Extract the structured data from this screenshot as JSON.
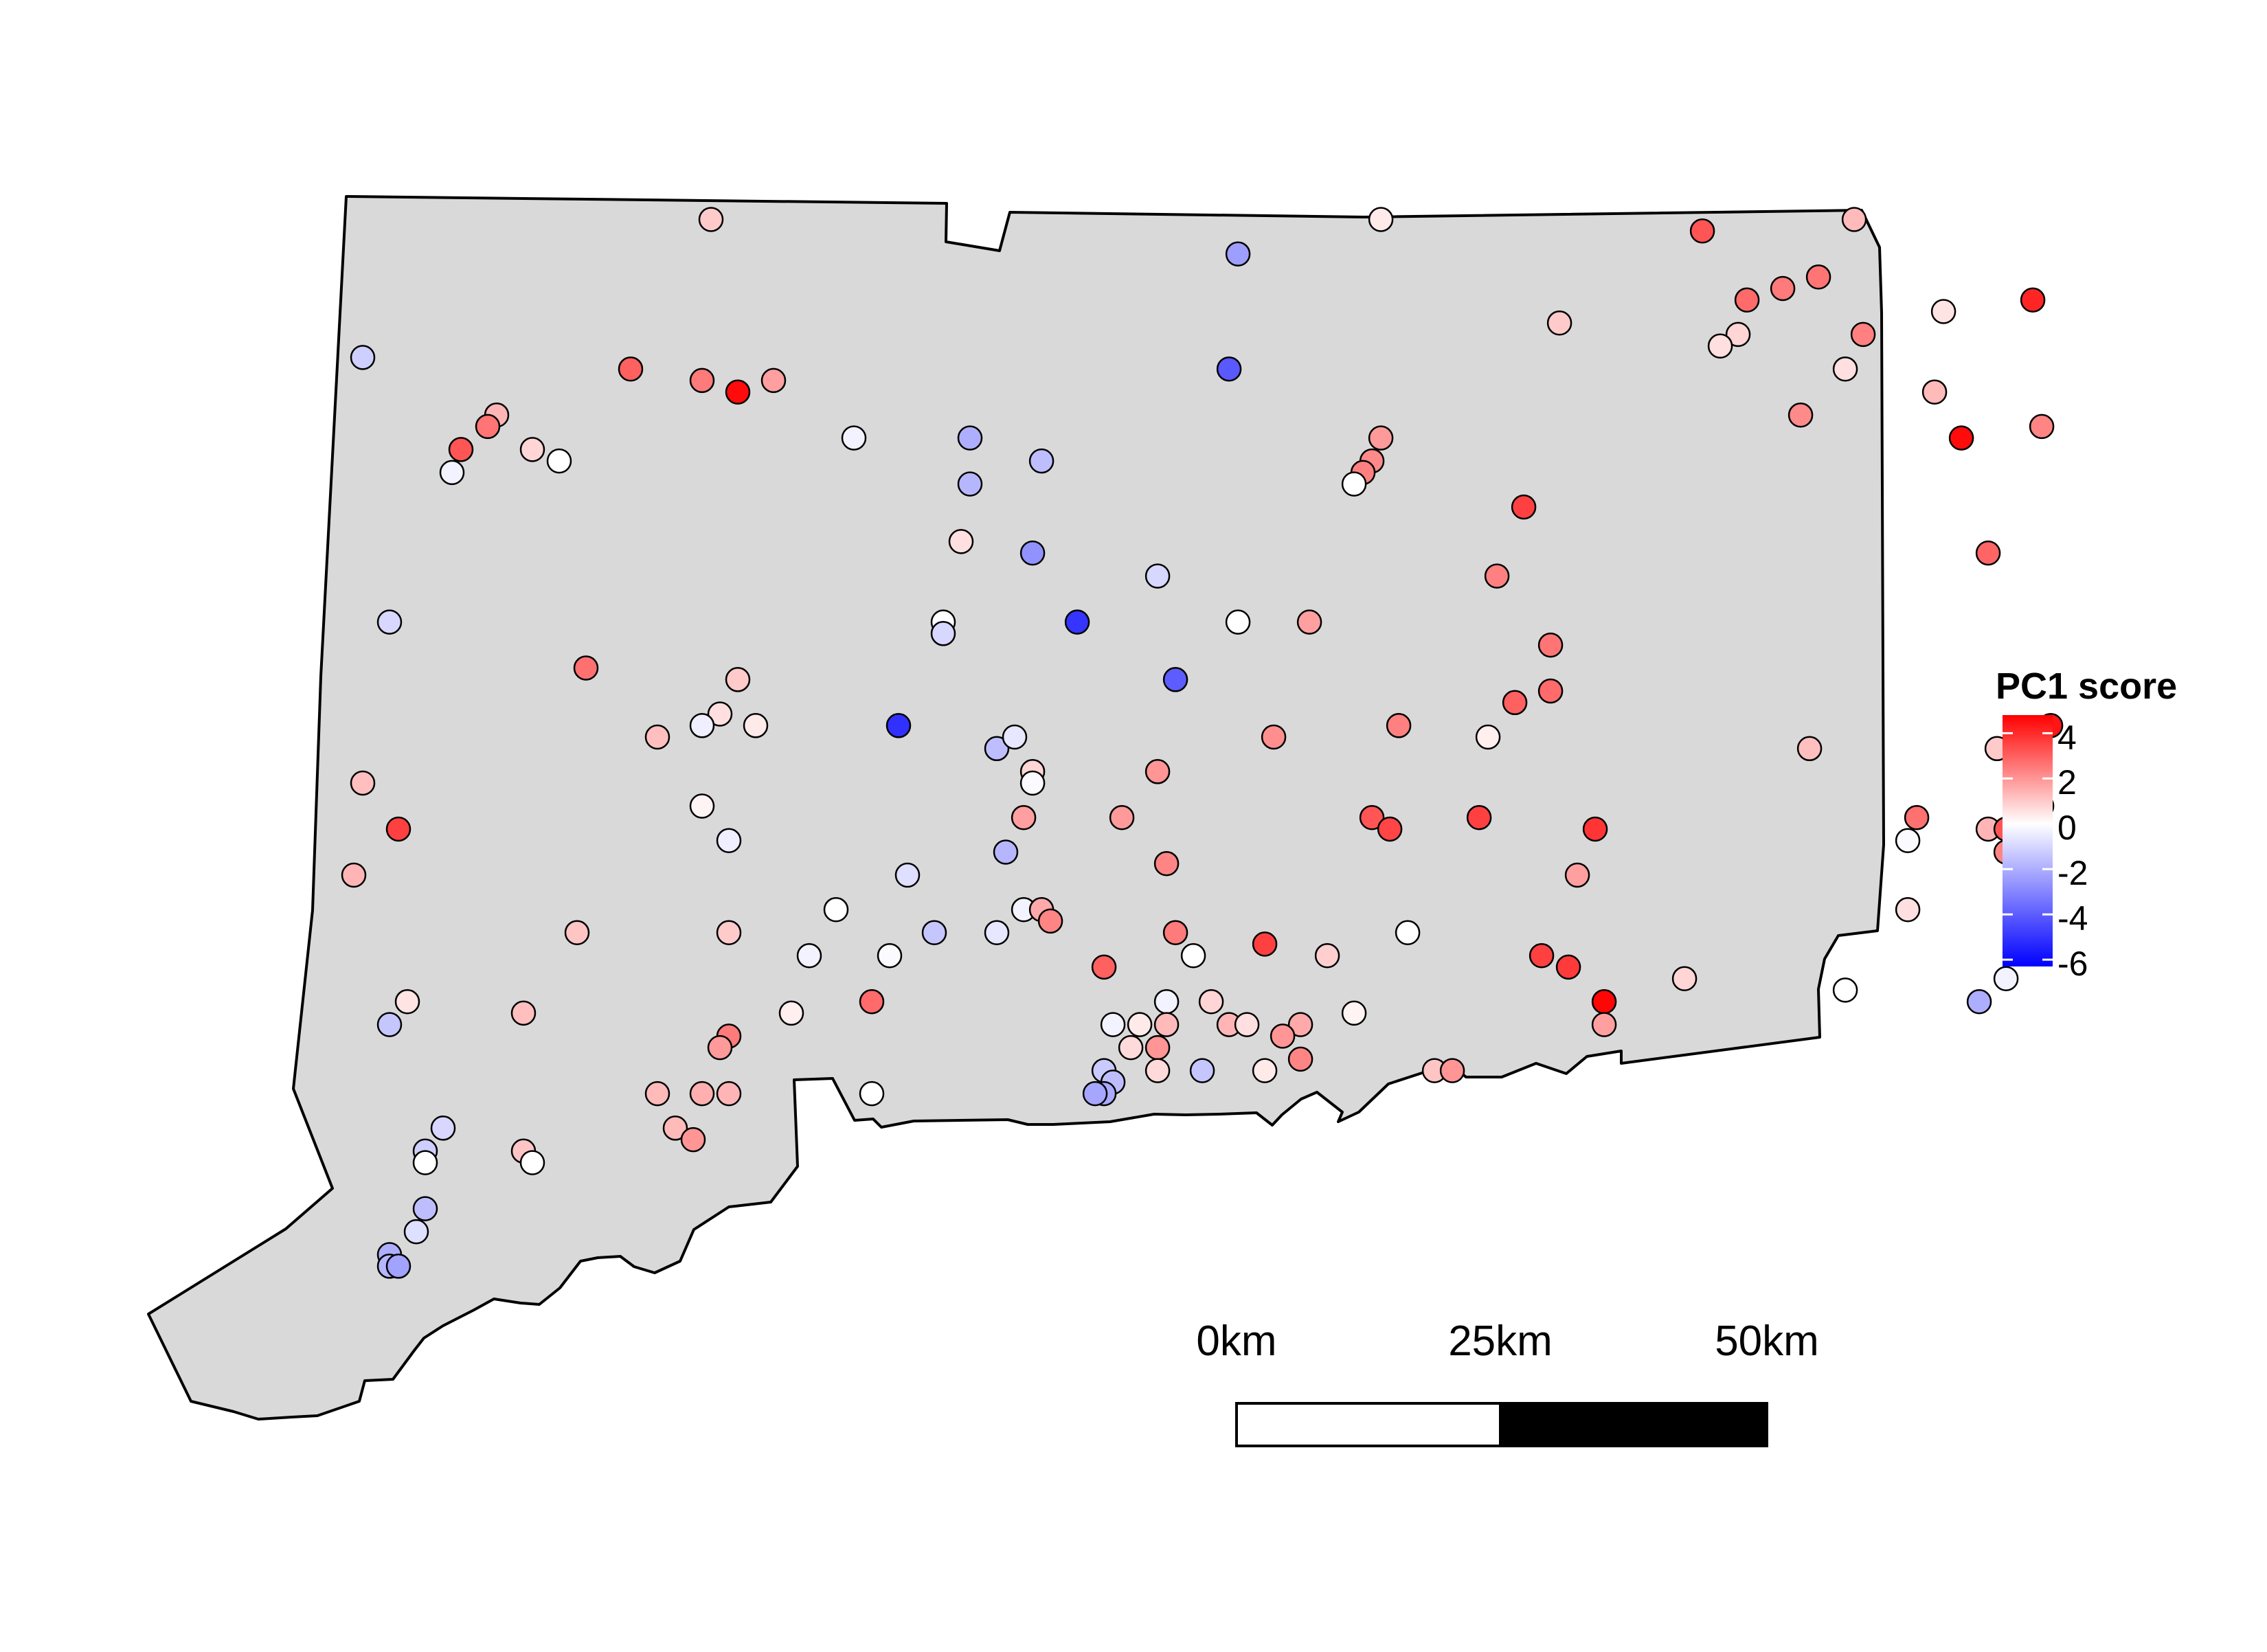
{
  "legend": {
    "title": "PC1 score",
    "ticks": [
      "4",
      "2",
      "0",
      "-2",
      "-4",
      "-6"
    ],
    "tick_values": [
      4,
      2,
      0,
      -2,
      -4,
      -6
    ],
    "range": [
      -6.3,
      4.8
    ],
    "colors": {
      "low": "#0000ff",
      "mid": "#ffffff",
      "high": "#ff0000"
    }
  },
  "scale_bar": {
    "labels": [
      "0km",
      "25km",
      "50km"
    ],
    "segment_colors": [
      "#ffffff",
      "#000000"
    ]
  },
  "colors": {
    "land_fill": "#d9d9d9",
    "outline": "#000000",
    "background": "#ffffff"
  },
  "sites": [
    {
      "lon": -73.1,
      "lat": 42.03,
      "pc1": 1.0
    },
    {
      "lon": -72.51,
      "lat": 42.0,
      "pc1": -2.4
    },
    {
      "lon": -72.35,
      "lat": 42.03,
      "pc1": 0.4
    },
    {
      "lon": -71.99,
      "lat": 42.02,
      "pc1": 3.2
    },
    {
      "lon": -71.82,
      "lat": 42.03,
      "pc1": 1.3
    },
    {
      "lon": -71.86,
      "lat": 41.98,
      "pc1": 2.6
    },
    {
      "lon": -71.9,
      "lat": 41.97,
      "pc1": 2.5
    },
    {
      "lon": -71.94,
      "lat": 41.96,
      "pc1": 2.8
    },
    {
      "lon": -71.72,
      "lat": 41.95,
      "pc1": 0.5
    },
    {
      "lon": -71.81,
      "lat": 41.93,
      "pc1": 2.4
    },
    {
      "lon": -71.62,
      "lat": 41.96,
      "pc1": 4.1
    },
    {
      "lon": -72.15,
      "lat": 41.94,
      "pc1": 1.0
    },
    {
      "lon": -71.95,
      "lat": 41.93,
      "pc1": 0.8
    },
    {
      "lon": -71.97,
      "lat": 41.92,
      "pc1": 0.6
    },
    {
      "lon": -71.83,
      "lat": 41.9,
      "pc1": 0.6
    },
    {
      "lon": -71.73,
      "lat": 41.88,
      "pc1": 1.3
    },
    {
      "lon": -73.49,
      "lat": 41.91,
      "pc1": -1.2
    },
    {
      "lon": -73.19,
      "lat": 41.9,
      "pc1": 3.0
    },
    {
      "lon": -73.11,
      "lat": 41.89,
      "pc1": 2.5
    },
    {
      "lon": -73.07,
      "lat": 41.88,
      "pc1": 4.6
    },
    {
      "lon": -73.03,
      "lat": 41.89,
      "pc1": 1.8
    },
    {
      "lon": -72.52,
      "lat": 41.9,
      "pc1": -4.1
    },
    {
      "lon": -71.88,
      "lat": 41.86,
      "pc1": 2.2
    },
    {
      "lon": -71.7,
      "lat": 41.84,
      "pc1": 4.6
    },
    {
      "lon": -71.61,
      "lat": 41.85,
      "pc1": 2.3
    },
    {
      "lon": -73.34,
      "lat": 41.86,
      "pc1": 1.4
    },
    {
      "lon": -73.35,
      "lat": 41.85,
      "pc1": 2.6
    },
    {
      "lon": -73.38,
      "lat": 41.83,
      "pc1": 3.2
    },
    {
      "lon": -73.3,
      "lat": 41.83,
      "pc1": 0.8
    },
    {
      "lon": -73.39,
      "lat": 41.81,
      "pc1": -0.3
    },
    {
      "lon": -73.27,
      "lat": 41.82,
      "pc1": 0.0
    },
    {
      "lon": -72.94,
      "lat": 41.84,
      "pc1": -0.3
    },
    {
      "lon": -72.81,
      "lat": 41.84,
      "pc1": -2.0
    },
    {
      "lon": -72.73,
      "lat": 41.82,
      "pc1": -1.6
    },
    {
      "lon": -72.81,
      "lat": 41.8,
      "pc1": -1.8
    },
    {
      "lon": -72.35,
      "lat": 41.84,
      "pc1": 1.9
    },
    {
      "lon": -72.36,
      "lat": 41.82,
      "pc1": 2.2
    },
    {
      "lon": -72.37,
      "lat": 41.81,
      "pc1": 2.4
    },
    {
      "lon": -72.38,
      "lat": 41.8,
      "pc1": 0.0
    },
    {
      "lon": -72.19,
      "lat": 41.78,
      "pc1": 3.6
    },
    {
      "lon": -72.82,
      "lat": 41.75,
      "pc1": 0.6
    },
    {
      "lon": -72.74,
      "lat": 41.74,
      "pc1": -2.7
    },
    {
      "lon": -72.6,
      "lat": 41.72,
      "pc1": -1.0
    },
    {
      "lon": -72.22,
      "lat": 41.72,
      "pc1": 2.4
    },
    {
      "lon": -71.67,
      "lat": 41.74,
      "pc1": 2.9
    },
    {
      "lon": -73.46,
      "lat": 41.68,
      "pc1": -1.0
    },
    {
      "lon": -72.84,
      "lat": 41.68,
      "pc1": 0.0
    },
    {
      "lon": -72.84,
      "lat": 41.67,
      "pc1": -1.0
    },
    {
      "lon": -72.69,
      "lat": 41.68,
      "pc1": -5.0
    },
    {
      "lon": -72.51,
      "lat": 41.68,
      "pc1": 0.0
    },
    {
      "lon": -72.43,
      "lat": 41.68,
      "pc1": 1.8
    },
    {
      "lon": -72.16,
      "lat": 41.66,
      "pc1": 2.6
    },
    {
      "lon": -73.24,
      "lat": 41.64,
      "pc1": 2.7
    },
    {
      "lon": -73.07,
      "lat": 41.63,
      "pc1": 1.0
    },
    {
      "lon": -72.58,
      "lat": 41.63,
      "pc1": -4.0
    },
    {
      "lon": -72.16,
      "lat": 41.62,
      "pc1": 2.8
    },
    {
      "lon": -72.2,
      "lat": 41.61,
      "pc1": 3.0
    },
    {
      "lon": -73.09,
      "lat": 41.6,
      "pc1": 0.6
    },
    {
      "lon": -73.05,
      "lat": 41.59,
      "pc1": 0.4
    },
    {
      "lon": -73.11,
      "lat": 41.59,
      "pc1": -0.4
    },
    {
      "lon": -73.16,
      "lat": 41.58,
      "pc1": 1.2
    },
    {
      "lon": -72.89,
      "lat": 41.59,
      "pc1": -5.1
    },
    {
      "lon": -72.78,
      "lat": 41.57,
      "pc1": -1.6
    },
    {
      "lon": -72.76,
      "lat": 41.58,
      "pc1": -0.6
    },
    {
      "lon": -72.47,
      "lat": 41.58,
      "pc1": 2.1
    },
    {
      "lon": -72.33,
      "lat": 41.59,
      "pc1": 2.4
    },
    {
      "lon": -72.23,
      "lat": 41.58,
      "pc1": 0.3
    },
    {
      "lon": -71.87,
      "lat": 41.57,
      "pc1": 1.2
    },
    {
      "lon": -71.66,
      "lat": 41.57,
      "pc1": 1.0
    },
    {
      "lon": -71.6,
      "lat": 41.59,
      "pc1": 4.4
    },
    {
      "lon": -73.49,
      "lat": 41.54,
      "pc1": 1.2
    },
    {
      "lon": -72.74,
      "lat": 41.55,
      "pc1": 0.8
    },
    {
      "lon": -72.74,
      "lat": 41.54,
      "pc1": -0.1
    },
    {
      "lon": -72.6,
      "lat": 41.55,
      "pc1": 2.0
    },
    {
      "lon": -73.11,
      "lat": 41.52,
      "pc1": 0.2
    },
    {
      "lon": -72.75,
      "lat": 41.51,
      "pc1": 1.8
    },
    {
      "lon": -72.64,
      "lat": 41.51,
      "pc1": 1.9
    },
    {
      "lon": -72.36,
      "lat": 41.51,
      "pc1": 3.2
    },
    {
      "lon": -72.34,
      "lat": 41.5,
      "pc1": 3.5
    },
    {
      "lon": -72.24,
      "lat": 41.51,
      "pc1": 3.6
    },
    {
      "lon": -72.11,
      "lat": 41.5,
      "pc1": 3.8
    },
    {
      "lon": -71.75,
      "lat": 41.51,
      "pc1": 2.7
    },
    {
      "lon": -71.67,
      "lat": 41.5,
      "pc1": 1.4
    },
    {
      "lon": -71.65,
      "lat": 41.5,
      "pc1": 3.2
    },
    {
      "lon": -71.61,
      "lat": 41.52,
      "pc1": 3.5
    },
    {
      "lon": -73.45,
      "lat": 41.5,
      "pc1": 3.6
    },
    {
      "lon": -73.08,
      "lat": 41.49,
      "pc1": -0.4
    },
    {
      "lon": -71.76,
      "lat": 41.49,
      "pc1": -0.1
    },
    {
      "lon": -71.65,
      "lat": 41.48,
      "pc1": 2.3
    },
    {
      "lon": -73.5,
      "lat": 41.46,
      "pc1": 1.4
    },
    {
      "lon": -72.88,
      "lat": 41.46,
      "pc1": -0.8
    },
    {
      "lon": -72.77,
      "lat": 41.48,
      "pc1": -1.8
    },
    {
      "lon": -72.59,
      "lat": 41.47,
      "pc1": 2.3
    },
    {
      "lon": -72.13,
      "lat": 41.46,
      "pc1": 1.8
    },
    {
      "lon": -72.96,
      "lat": 41.43,
      "pc1": 0.0
    },
    {
      "lon": -72.75,
      "lat": 41.43,
      "pc1": -0.3
    },
    {
      "lon": -72.73,
      "lat": 41.43,
      "pc1": 1.6
    },
    {
      "lon": -72.72,
      "lat": 41.42,
      "pc1": 2.3
    },
    {
      "lon": -71.76,
      "lat": 41.43,
      "pc1": 0.6
    },
    {
      "lon": -73.25,
      "lat": 41.41,
      "pc1": 1.1
    },
    {
      "lon": -73.08,
      "lat": 41.41,
      "pc1": 1.0
    },
    {
      "lon": -72.85,
      "lat": 41.41,
      "pc1": -1.4
    },
    {
      "lon": -72.78,
      "lat": 41.41,
      "pc1": -0.6
    },
    {
      "lon": -72.58,
      "lat": 41.41,
      "pc1": 2.5
    },
    {
      "lon": -72.48,
      "lat": 41.4,
      "pc1": 3.6
    },
    {
      "lon": -72.41,
      "lat": 41.39,
      "pc1": 0.9
    },
    {
      "lon": -72.32,
      "lat": 41.41,
      "pc1": 0.0
    },
    {
      "lon": -72.17,
      "lat": 41.39,
      "pc1": 3.6
    },
    {
      "lon": -72.14,
      "lat": 41.38,
      "pc1": 3.7
    },
    {
      "lon": -72.99,
      "lat": 41.39,
      "pc1": -0.3
    },
    {
      "lon": -72.9,
      "lat": 41.39,
      "pc1": -0.1
    },
    {
      "lon": -72.56,
      "lat": 41.39,
      "pc1": 0.0
    },
    {
      "lon": -72.66,
      "lat": 41.38,
      "pc1": 3.0
    },
    {
      "lon": -72.01,
      "lat": 41.37,
      "pc1": 0.8
    },
    {
      "lon": -71.83,
      "lat": 41.36,
      "pc1": 0.0
    },
    {
      "lon": -73.44,
      "lat": 41.35,
      "pc1": 0.5
    },
    {
      "lon": -73.31,
      "lat": 41.34,
      "pc1": 1.2
    },
    {
      "lon": -73.01,
      "lat": 41.34,
      "pc1": 0.3
    },
    {
      "lon": -72.92,
      "lat": 41.35,
      "pc1": 2.8
    },
    {
      "lon": -72.59,
      "lat": 41.35,
      "pc1": -0.3
    },
    {
      "lon": -72.54,
      "lat": 41.35,
      "pc1": 0.8
    },
    {
      "lon": -72.52,
      "lat": 41.33,
      "pc1": 1.4
    },
    {
      "lon": -72.38,
      "lat": 41.34,
      "pc1": 0.2
    },
    {
      "lon": -72.44,
      "lat": 41.33,
      "pc1": 1.6
    },
    {
      "lon": -72.1,
      "lat": 41.35,
      "pc1": 4.7
    },
    {
      "lon": -72.1,
      "lat": 41.33,
      "pc1": 1.8
    },
    {
      "lon": -71.68,
      "lat": 41.35,
      "pc1": -2.0
    },
    {
      "lon": -71.65,
      "lat": 41.37,
      "pc1": -0.3
    },
    {
      "lon": -73.46,
      "lat": 41.33,
      "pc1": -1.4
    },
    {
      "lon": -73.08,
      "lat": 41.32,
      "pc1": 2.5
    },
    {
      "lon": -73.09,
      "lat": 41.31,
      "pc1": 1.9
    },
    {
      "lon": -72.65,
      "lat": 41.33,
      "pc1": -0.3
    },
    {
      "lon": -72.62,
      "lat": 41.33,
      "pc1": 0.4
    },
    {
      "lon": -72.63,
      "lat": 41.31,
      "pc1": 0.7
    },
    {
      "lon": -72.59,
      "lat": 41.33,
      "pc1": 1.3
    },
    {
      "lon": -72.6,
      "lat": 41.31,
      "pc1": 2.0
    },
    {
      "lon": -72.5,
      "lat": 41.33,
      "pc1": 0.6
    },
    {
      "lon": -72.46,
      "lat": 41.32,
      "pc1": 2.0
    },
    {
      "lon": -72.6,
      "lat": 41.29,
      "pc1": 0.7
    },
    {
      "lon": -72.55,
      "lat": 41.29,
      "pc1": -1.4
    },
    {
      "lon": -72.48,
      "lat": 41.29,
      "pc1": 0.4
    },
    {
      "lon": -72.44,
      "lat": 41.3,
      "pc1": 2.3
    },
    {
      "lon": -72.29,
      "lat": 41.29,
      "pc1": 1.1
    },
    {
      "lon": -72.27,
      "lat": 41.29,
      "pc1": 2.0
    },
    {
      "lon": -72.66,
      "lat": 41.29,
      "pc1": -1.3
    },
    {
      "lon": -72.65,
      "lat": 41.28,
      "pc1": -1.6
    },
    {
      "lon": -72.66,
      "lat": 41.27,
      "pc1": -2.1
    },
    {
      "lon": -72.67,
      "lat": 41.27,
      "pc1": -2.2
    },
    {
      "lon": -73.16,
      "lat": 41.27,
      "pc1": 1.3
    },
    {
      "lon": -73.11,
      "lat": 41.27,
      "pc1": 1.5
    },
    {
      "lon": -73.08,
      "lat": 41.27,
      "pc1": 1.4
    },
    {
      "lon": -72.92,
      "lat": 41.27,
      "pc1": 0.0
    },
    {
      "lon": -73.4,
      "lat": 41.24,
      "pc1": -1.0
    },
    {
      "lon": -73.14,
      "lat": 41.24,
      "pc1": 1.3
    },
    {
      "lon": -73.12,
      "lat": 41.23,
      "pc1": 2.0
    },
    {
      "lon": -73.42,
      "lat": 41.22,
      "pc1": -1.2
    },
    {
      "lon": -73.42,
      "lat": 41.21,
      "pc1": 0.0
    },
    {
      "lon": -73.31,
      "lat": 41.22,
      "pc1": 1.1
    },
    {
      "lon": -73.3,
      "lat": 41.21,
      "pc1": 0.0
    },
    {
      "lon": -73.42,
      "lat": 41.17,
      "pc1": -1.6
    },
    {
      "lon": -73.43,
      "lat": 41.15,
      "pc1": -0.8
    },
    {
      "lon": -73.46,
      "lat": 41.13,
      "pc1": -2.0
    },
    {
      "lon": -73.46,
      "lat": 41.12,
      "pc1": -1.8
    },
    {
      "lon": -73.45,
      "lat": 41.12,
      "pc1": -2.3
    }
  ]
}
